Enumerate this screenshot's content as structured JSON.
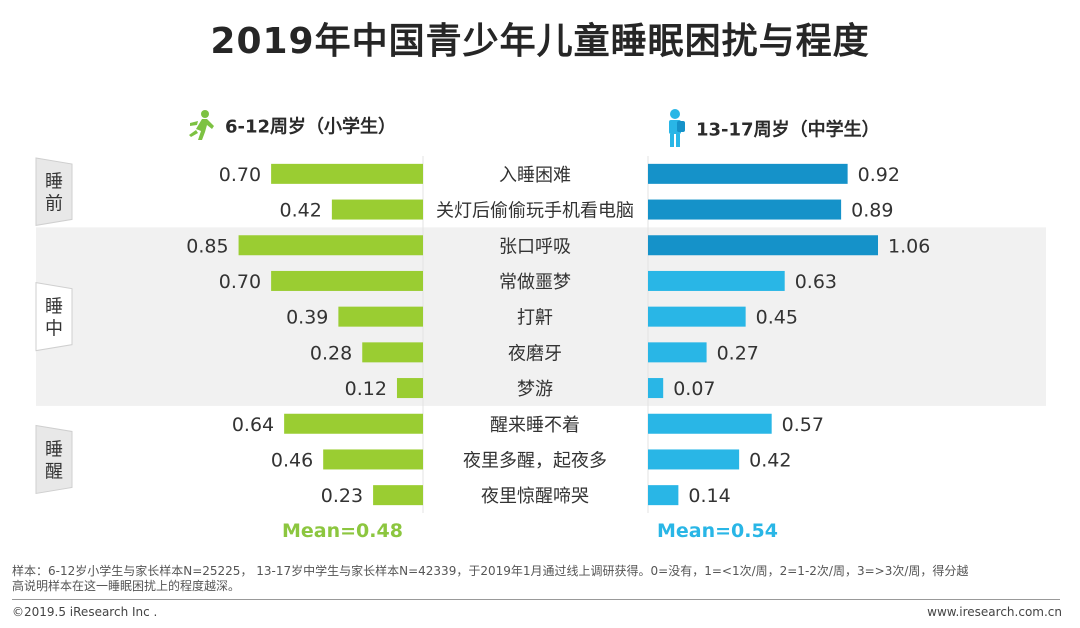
{
  "title": "2019年中国青少年儿童睡眠困扰与程度",
  "groups": {
    "left": {
      "label": "6-12周岁（小学生）",
      "color": "#9acd32",
      "mean": "Mean=0.48"
    },
    "right": {
      "label": "13-17周岁（中学生）",
      "color_dark": "#1592c9",
      "color_light": "#29b6e6",
      "mean": "Mean=0.54"
    }
  },
  "stages": [
    {
      "label": "睡前",
      "rows": [
        0,
        1
      ]
    },
    {
      "label": "睡中",
      "rows": [
        2,
        3,
        4,
        5,
        6
      ]
    },
    {
      "label": "睡醒",
      "rows": [
        7,
        8,
        9
      ]
    }
  ],
  "chart_data": {
    "type": "bar",
    "title": "2019年中国青少年儿童睡眠困扰与程度",
    "orientation": "horizontal-butterfly",
    "categories": [
      "入睡困难",
      "关灯后偷偷玩手机看电脑",
      "张口呼吸",
      "常做噩梦",
      "打鼾",
      "夜磨牙",
      "梦游",
      "醒来睡不着",
      "夜里多醒，起夜多",
      "夜里惊醒啼哭"
    ],
    "series": [
      {
        "name": "6-12周岁（小学生）",
        "values": [
          0.7,
          0.42,
          0.85,
          0.7,
          0.39,
          0.28,
          0.12,
          0.64,
          0.46,
          0.23
        ]
      },
      {
        "name": "13-17周岁（中学生）",
        "values": [
          0.92,
          0.89,
          1.06,
          0.63,
          0.45,
          0.27,
          0.07,
          0.57,
          0.42,
          0.14
        ]
      }
    ],
    "value_labels_left": [
      "0.70",
      "0.42",
      "0.85",
      "0.70",
      "0.39",
      "0.28",
      "0.12",
      "0.64",
      "0.46",
      "0.23"
    ],
    "value_labels_right": [
      "0.92",
      "0.89",
      "1.06",
      "0.63",
      "0.45",
      "0.27",
      "0.07",
      "0.57",
      "0.42",
      "0.14"
    ],
    "dark_rows_right": [
      0,
      1,
      2
    ],
    "xlim": [
      0,
      1.06
    ]
  },
  "footnote_line1": "样本：6-12岁小学生与家长样本N=25225， 13-17岁中学生与家长样本N=42339，于2019年1月通过线上调研获得。0=没有，1=<1次/周，2=1-2次/周，3=>3次/周，得分越",
  "footnote_line2": "高说明样本在这一睡眠困扰上的程度越深。",
  "copyright": "©2019.5 iResearch Inc .",
  "website": "www.iresearch.com.cn"
}
